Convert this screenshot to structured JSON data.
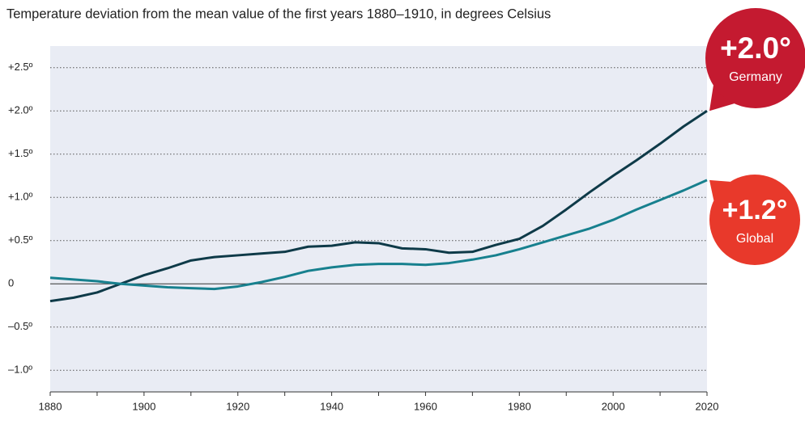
{
  "chart_data": {
    "type": "line",
    "subtitle": "Temperature deviation from the mean value of the first years 1880–1910, in degrees Celsius",
    "x": [
      1880,
      1885,
      1890,
      1895,
      1900,
      1905,
      1910,
      1915,
      1920,
      1925,
      1930,
      1935,
      1940,
      1945,
      1950,
      1955,
      1960,
      1965,
      1970,
      1975,
      1980,
      1985,
      1990,
      1995,
      2000,
      2005,
      2010,
      2015,
      2020
    ],
    "series": [
      {
        "name": "Germany",
        "color": "#0e3a48",
        "label_color": "#c41a30",
        "values": [
          -0.2,
          -0.16,
          -0.1,
          0.0,
          0.1,
          0.18,
          0.27,
          0.31,
          0.33,
          0.35,
          0.37,
          0.43,
          0.44,
          0.48,
          0.47,
          0.41,
          0.4,
          0.36,
          0.37,
          0.45,
          0.52,
          0.67,
          0.86,
          1.06,
          1.25,
          1.43,
          1.62,
          1.82,
          2.0
        ],
        "value_labels": [
          null,
          null,
          null,
          null,
          null,
          null,
          null,
          null,
          null,
          null,
          null,
          null,
          null,
          null,
          null,
          null,
          null,
          null,
          null,
          null,
          null,
          null,
          null,
          null,
          null,
          null,
          null,
          null,
          "+2.0°"
        ]
      },
      {
        "name": "Global",
        "color": "#17808e",
        "label_color": "#e8392b",
        "values": [
          0.07,
          0.05,
          0.03,
          0.0,
          -0.02,
          -0.04,
          -0.05,
          -0.06,
          -0.03,
          0.02,
          0.08,
          0.15,
          0.19,
          0.22,
          0.23,
          0.23,
          0.22,
          0.24,
          0.28,
          0.33,
          0.4,
          0.48,
          0.56,
          0.64,
          0.74,
          0.86,
          0.97,
          1.08,
          1.2
        ],
        "value_labels": [
          null,
          null,
          null,
          null,
          null,
          null,
          null,
          null,
          null,
          null,
          null,
          null,
          null,
          null,
          null,
          null,
          null,
          null,
          null,
          null,
          null,
          null,
          null,
          null,
          null,
          null,
          null,
          null,
          "+1.2°"
        ]
      }
    ],
    "xlim": [
      1880,
      2020
    ],
    "xticks": [
      1880,
      1900,
      1920,
      1940,
      1960,
      1980,
      2000,
      2020
    ],
    "xminor_ticks": [
      1890,
      1910,
      1930,
      1950,
      1970,
      1990,
      2010
    ],
    "ylim": [
      -1.25,
      2.75
    ],
    "yticks": [
      {
        "value": -1.0,
        "label": "–1.0º"
      },
      {
        "value": -0.5,
        "label": "–0.5º"
      },
      0,
      {
        "value": 0.5,
        "label": "+0.5º"
      },
      {
        "value": 1.0,
        "label": "+1.0º"
      },
      {
        "value": 1.5,
        "label": "+1.5º"
      },
      {
        "value": 2.0,
        "label": "+2.0º"
      },
      {
        "value": 2.5,
        "label": "+2.5º"
      }
    ],
    "grid": true,
    "background": "#e9ecf4"
  }
}
